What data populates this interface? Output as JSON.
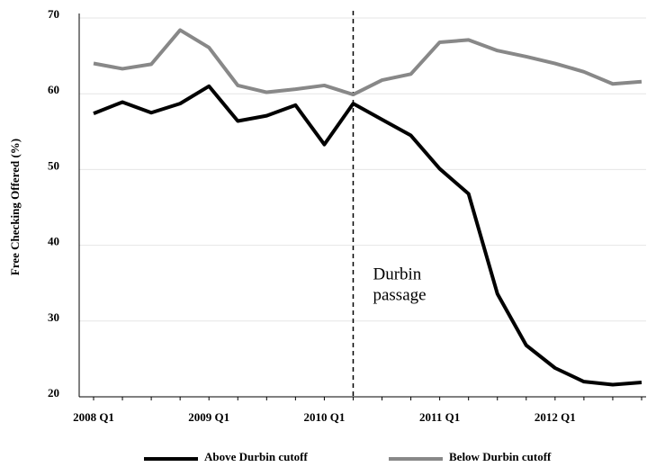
{
  "chart_data": {
    "type": "line",
    "y_label": "Free Checking Offered (%)",
    "categories": [
      "2008 Q1",
      null,
      null,
      null,
      "2009 Q1",
      null,
      null,
      null,
      "2010 Q1",
      null,
      null,
      null,
      "2011 Q1",
      null,
      null,
      null,
      "2012 Q1",
      null,
      null,
      null
    ],
    "series": [
      {
        "name": "Above Durbin cutoff",
        "color": "#000000",
        "values": [
          57.4,
          58.9,
          57.5,
          58.7,
          61.0,
          56.4,
          57.1,
          58.5,
          53.3,
          58.7,
          56.6,
          54.5,
          50.1,
          46.8,
          33.6,
          26.8,
          23.8,
          22.0,
          21.6,
          21.9
        ]
      },
      {
        "name": "Below Durbin cutoff",
        "color": "#888888",
        "values": [
          64.0,
          63.3,
          63.9,
          68.4,
          66.1,
          61.1,
          60.2,
          60.6,
          61.1,
          59.9,
          61.8,
          62.6,
          66.8,
          67.1,
          65.7,
          64.9,
          64.0,
          62.9,
          61.3,
          61.6
        ]
      }
    ],
    "ylim": [
      20,
      70
    ],
    "yticks": [
      20,
      30,
      40,
      50,
      60,
      70
    ],
    "grid": true,
    "annotation": {
      "lines": [
        "Durbin",
        "passage"
      ],
      "at": 9
    },
    "legend": "bottom"
  }
}
